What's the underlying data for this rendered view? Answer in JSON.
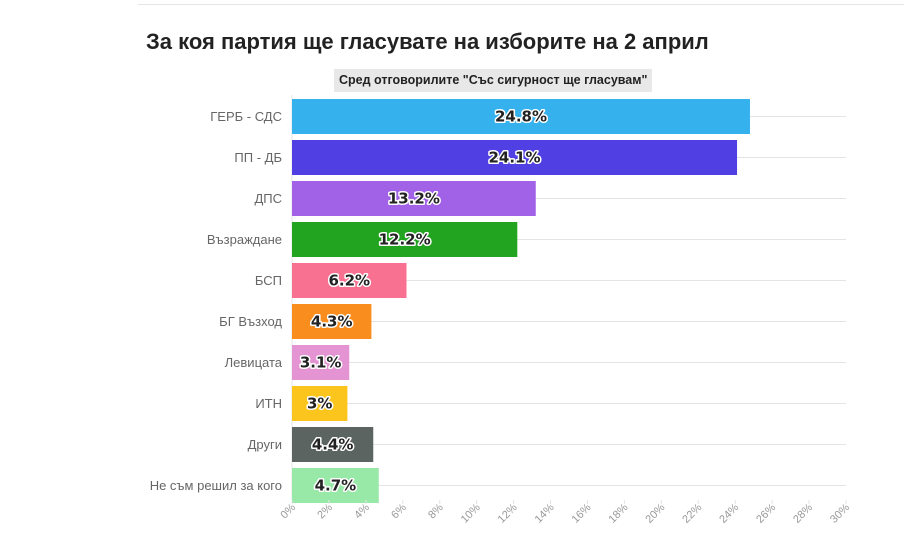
{
  "chart_data": {
    "type": "bar",
    "orientation": "horizontal",
    "title": "За коя партия ще гласувате на изборите на 2 април",
    "subtitle": "Сред отговорилите \"Със сигурност ще гласувам\"",
    "categories": [
      "ГЕРБ - СДС",
      "ПП - ДБ",
      "ДПС",
      "Възраждане",
      "БСП",
      "БГ Възход",
      "Левицата",
      "ИТН",
      "Други",
      "Не съм решил за кого"
    ],
    "values": [
      24.8,
      24.1,
      13.2,
      12.2,
      6.2,
      4.3,
      3.1,
      3,
      4.4,
      4.7
    ],
    "value_labels": [
      "24.8%",
      "24.1%",
      "13.2%",
      "12.2%",
      "6.2%",
      "4.3%",
      "3.1%",
      "3%",
      "4.4%",
      "4.7%"
    ],
    "colors": [
      "#35b2ee",
      "#5040e4",
      "#a162e8",
      "#22a421",
      "#f87191",
      "#f98e1f",
      "#e493d3",
      "#fcc51e",
      "#5b6461",
      "#98e9a8"
    ],
    "xlim": [
      0,
      30
    ],
    "x_ticks": [
      0,
      2,
      4,
      6,
      8,
      10,
      12,
      14,
      16,
      18,
      20,
      22,
      24,
      26,
      28,
      30
    ],
    "x_tick_labels": [
      "0%",
      "2%",
      "4%",
      "6%",
      "8%",
      "10%",
      "12%",
      "14%",
      "16%",
      "18%",
      "20%",
      "22%",
      "24%",
      "26%",
      "28%",
      "30%"
    ],
    "xlabel": "",
    "ylabel": "",
    "grid": true
  }
}
